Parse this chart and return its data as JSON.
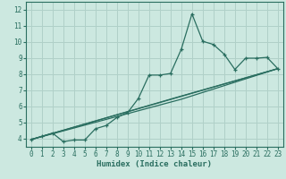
{
  "xlabel": "Humidex (Indice chaleur)",
  "bg_color": "#cce8e0",
  "grid_color": "#b0d0c8",
  "line_color": "#2a6e60",
  "spine_color": "#2a6e60",
  "xlim": [
    -0.5,
    23.5
  ],
  "ylim": [
    3.5,
    12.5
  ],
  "xticks": [
    0,
    1,
    2,
    3,
    4,
    5,
    6,
    7,
    8,
    9,
    10,
    11,
    12,
    13,
    14,
    15,
    16,
    17,
    18,
    19,
    20,
    21,
    22,
    23
  ],
  "yticks": [
    4,
    5,
    6,
    7,
    8,
    9,
    10,
    11,
    12
  ],
  "series1_x": [
    0,
    1,
    2,
    3,
    4,
    5,
    6,
    7,
    8,
    9,
    10,
    11,
    12,
    13,
    14,
    15,
    16,
    17,
    18,
    19,
    20,
    21,
    22,
    23
  ],
  "series1_y": [
    3.95,
    4.15,
    4.35,
    3.82,
    3.92,
    3.92,
    4.62,
    4.82,
    5.32,
    5.62,
    6.5,
    7.95,
    7.95,
    8.05,
    9.55,
    11.75,
    10.05,
    9.85,
    9.25,
    8.3,
    9.0,
    9.0,
    9.05,
    8.35
  ],
  "series2_x": [
    0,
    23
  ],
  "series2_y": [
    3.95,
    8.35
  ],
  "series3_x": [
    0,
    14,
    23
  ],
  "series3_y": [
    3.95,
    6.45,
    8.35
  ],
  "series4_x": [
    0,
    14,
    23
  ],
  "series4_y": [
    3.95,
    6.65,
    8.35
  ],
  "tick_fontsize": 5.5,
  "label_fontsize": 6.5
}
